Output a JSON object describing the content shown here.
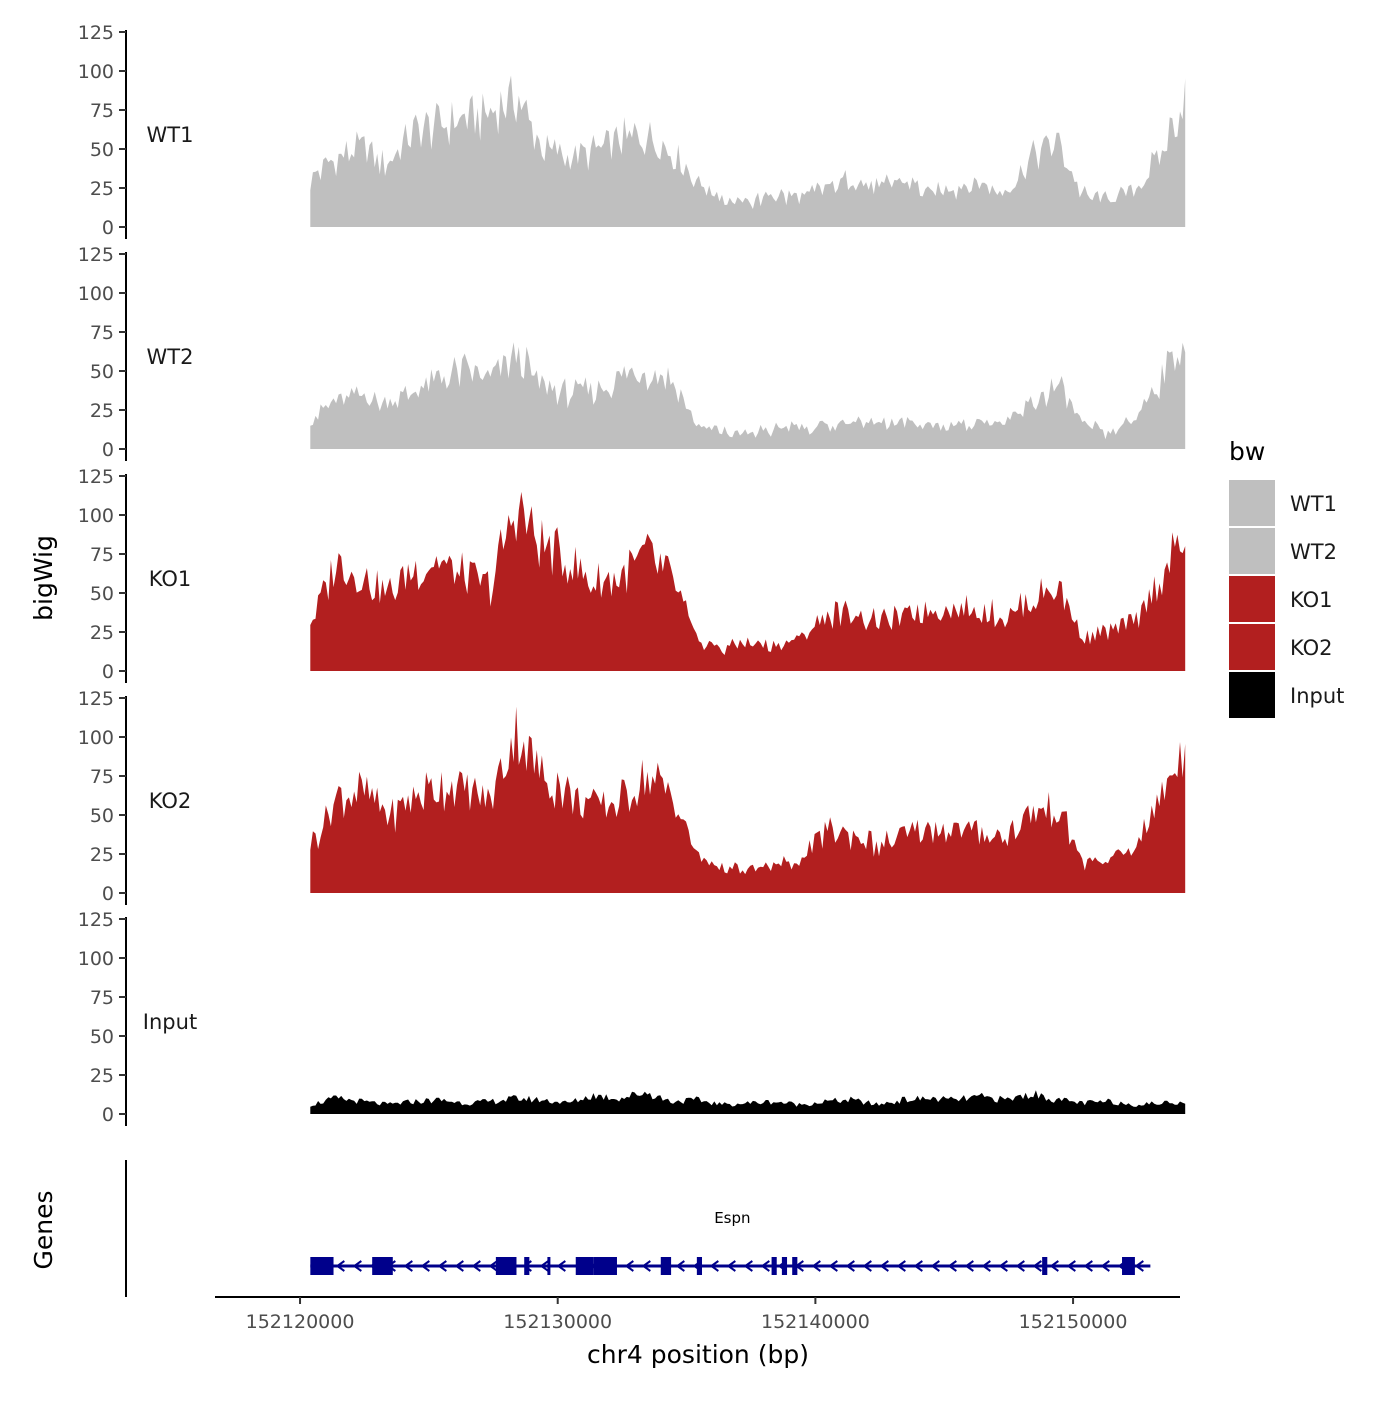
{
  "chart_data": {
    "type": "area",
    "title": "",
    "ylabel": "bigWig",
    "xlabel": "chr4 position (bp)",
    "genes_label": "Genes",
    "ylim": [
      0,
      125
    ],
    "y_ticks": [
      "0",
      "25",
      "50",
      "75",
      "100",
      "125"
    ],
    "y_tick_values": [
      0,
      25,
      50,
      75,
      100,
      125
    ],
    "xlim": [
      152116700,
      152154150
    ],
    "x_ticks": [
      "152120000",
      "152130000",
      "152140000",
      "152150000"
    ],
    "x_tick_values": [
      152120000,
      152130000,
      152140000,
      152150000
    ],
    "region_start": 152120400,
    "region_end": 152154350,
    "legend": {
      "title": "bw",
      "position": "right",
      "entries": [
        {
          "label": "WT1",
          "color": "#bfbfbf"
        },
        {
          "label": "WT2",
          "color": "#bfbfbf"
        },
        {
          "label": "KO1",
          "color": "#b21f1f"
        },
        {
          "label": "KO2",
          "color": "#b21f1f"
        },
        {
          "label": "Input",
          "color": "#000000"
        }
      ]
    },
    "series": [
      {
        "name": "WT1",
        "color": "#bfbfbf",
        "x": [
          152120400,
          152121400,
          152122400,
          152123400,
          152124400,
          152125400,
          152126400,
          152127400,
          152128400,
          152129400,
          152130400,
          152131400,
          152132400,
          152133400,
          152134400,
          152135400,
          152136400,
          152137400,
          152138400,
          152139400,
          152140400,
          152141400,
          152142400,
          152143400,
          152144400,
          152145400,
          152146400,
          152147400,
          152148400,
          152149400,
          152150400,
          152151400,
          152152400,
          152153400,
          152154350
        ],
        "values": [
          30,
          45,
          50,
          40,
          60,
          65,
          70,
          72,
          85,
          50,
          45,
          48,
          55,
          60,
          50,
          30,
          18,
          15,
          20,
          18,
          25,
          30,
          25,
          30,
          22,
          25,
          28,
          22,
          45,
          55,
          20,
          18,
          25,
          45,
          85
        ]
      },
      {
        "name": "WT2",
        "color": "#bfbfbf",
        "x": [
          152120400,
          152121400,
          152122400,
          152123400,
          152124400,
          152125400,
          152126400,
          152127400,
          152128400,
          152129400,
          152130400,
          152131400,
          152132400,
          152133400,
          152134400,
          152135400,
          152136400,
          152137400,
          152138400,
          152139400,
          152140400,
          152141400,
          152142400,
          152143400,
          152144400,
          152145400,
          152146400,
          152147400,
          152148400,
          152149400,
          152150400,
          152151400,
          152152400,
          152153400,
          152154350
        ],
        "values": [
          20,
          30,
          35,
          30,
          35,
          45,
          50,
          45,
          60,
          40,
          35,
          38,
          45,
          50,
          45,
          15,
          10,
          10,
          12,
          15,
          15,
          18,
          15,
          18,
          15,
          15,
          18,
          15,
          30,
          40,
          15,
          10,
          20,
          45,
          70
        ]
      },
      {
        "name": "KO1",
        "color": "#b21f1f",
        "x": [
          152120400,
          152121400,
          152122400,
          152123400,
          152124400,
          152125400,
          152126400,
          152127400,
          152128400,
          152129400,
          152130400,
          152131400,
          152132400,
          152133400,
          152134400,
          152135400,
          152136400,
          152137400,
          152138400,
          152139400,
          152140400,
          152141400,
          152142400,
          152143400,
          152144400,
          152145400,
          152146400,
          152147400,
          152148400,
          152149400,
          152150400,
          152151400,
          152152400,
          152153400,
          152154350
        ],
        "values": [
          30,
          70,
          60,
          50,
          65,
          70,
          60,
          55,
          105,
          80,
          70,
          55,
          60,
          75,
          60,
          20,
          15,
          18,
          15,
          20,
          35,
          38,
          30,
          35,
          40,
          40,
          38,
          35,
          45,
          55,
          20,
          25,
          30,
          60,
          85
        ]
      },
      {
        "name": "KO2",
        "color": "#b21f1f",
        "x": [
          152120400,
          152121400,
          152122400,
          152123400,
          152124400,
          152125400,
          152126400,
          152127400,
          152128400,
          152129400,
          152130400,
          152131400,
          152132400,
          152133400,
          152134400,
          152135400,
          152136400,
          152137400,
          152138400,
          152139400,
          152140400,
          152141400,
          152142400,
          152143400,
          152144400,
          152145400,
          152146400,
          152147400,
          152148400,
          152149400,
          152150400,
          152151400,
          152152400,
          152153400,
          152154350
        ],
        "values": [
          30,
          60,
          65,
          50,
          60,
          70,
          65,
          60,
          105,
          75,
          65,
          55,
          60,
          75,
          65,
          25,
          15,
          15,
          18,
          20,
          40,
          38,
          30,
          35,
          40,
          40,
          38,
          35,
          50,
          55,
          20,
          20,
          30,
          60,
          95
        ]
      },
      {
        "name": "Input",
        "color": "#000000",
        "x": [
          152120400,
          152121400,
          152122400,
          152123400,
          152124400,
          152125400,
          152126400,
          152127400,
          152128400,
          152129400,
          152130400,
          152131400,
          152132400,
          152133400,
          152134400,
          152135400,
          152136400,
          152137400,
          152138400,
          152139400,
          152140400,
          152141400,
          152142400,
          152143400,
          152144400,
          152145400,
          152146400,
          152147400,
          152148400,
          152149400,
          152150400,
          152151400,
          152152400,
          152153400,
          152154350
        ],
        "values": [
          6,
          10,
          8,
          6,
          8,
          9,
          7,
          8,
          10,
          9,
          7,
          12,
          10,
          14,
          8,
          9,
          6,
          7,
          8,
          6,
          8,
          9,
          6,
          9,
          10,
          9,
          11,
          9,
          13,
          9,
          7,
          8,
          6,
          7,
          8
        ]
      }
    ],
    "gene": {
      "name": "Espn",
      "color": "#00008b",
      "strand": "-",
      "start": 152120400,
      "end": 152153000,
      "exons": [
        {
          "start": 152120400,
          "end": 152121300
        },
        {
          "start": 152122800,
          "end": 152123600
        },
        {
          "start": 152127600,
          "end": 152128400
        },
        {
          "start": 152128700,
          "end": 152128900
        },
        {
          "start": 152129600,
          "end": 152129700
        },
        {
          "start": 152130700,
          "end": 152131400
        },
        {
          "start": 152131400,
          "end": 152132300
        },
        {
          "start": 152134000,
          "end": 152134400
        },
        {
          "start": 152135400,
          "end": 152135600
        },
        {
          "start": 152138300,
          "end": 152138500
        },
        {
          "start": 152138700,
          "end": 152138900
        },
        {
          "start": 152139100,
          "end": 152139300
        },
        {
          "start": 152148800,
          "end": 152149000
        },
        {
          "start": 152151900,
          "end": 152152400
        }
      ]
    }
  }
}
